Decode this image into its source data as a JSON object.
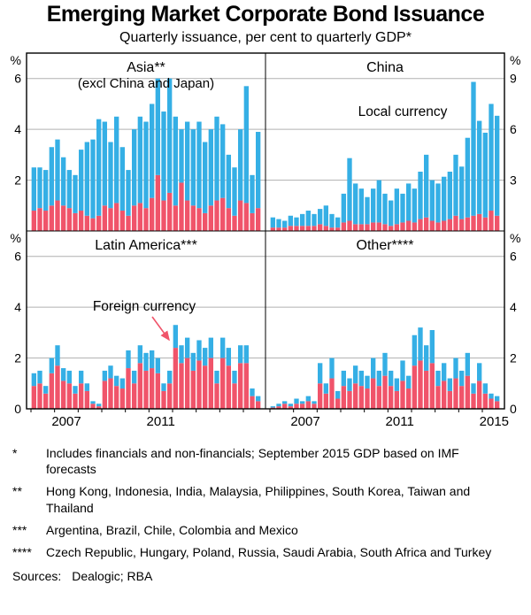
{
  "title": "Emerging Market Corporate Bond Issuance",
  "subtitle": "Quarterly issuance, per cent to quarterly GDP*",
  "colors": {
    "local": "#35AFE5",
    "foreign": "#F0546A",
    "grid": "#B0B0B0",
    "axis": "#000000"
  },
  "legend": {
    "local_label": "Local currency",
    "foreign_label": "Foreign currency"
  },
  "footnotes": [
    {
      "marker": "*",
      "text": "Includes financials and non-financials; September 2015 GDP based on IMF forecasts"
    },
    {
      "marker": "**",
      "text": "Hong Kong, Indonesia, India, Malaysia, Philippines, South Korea, Taiwan and Thailand"
    },
    {
      "marker": "***",
      "text": "Argentina, Brazil, Chile, Colombia and Mexico"
    },
    {
      "marker": "****",
      "text": "Czech Republic, Hungary, Poland, Russia, Saudi Arabia, South Africa and Turkey"
    }
  ],
  "sources": {
    "label": "Sources:",
    "text": "Dealogic; RBA"
  },
  "chart_data": {
    "type": "bar",
    "stacked": true,
    "y_axis": {
      "unit": "%"
    },
    "quarters": [
      "2006Q1",
      "2006Q2",
      "2006Q3",
      "2006Q4",
      "2007Q1",
      "2007Q2",
      "2007Q3",
      "2007Q4",
      "2008Q1",
      "2008Q2",
      "2008Q3",
      "2008Q4",
      "2009Q1",
      "2009Q2",
      "2009Q3",
      "2009Q4",
      "2010Q1",
      "2010Q2",
      "2010Q3",
      "2010Q4",
      "2011Q1",
      "2011Q2",
      "2011Q3",
      "2011Q4",
      "2012Q1",
      "2012Q2",
      "2012Q3",
      "2012Q4",
      "2013Q1",
      "2013Q2",
      "2013Q3",
      "2013Q4",
      "2014Q1",
      "2014Q2",
      "2014Q3",
      "2014Q4",
      "2015Q1",
      "2015Q2",
      "2015Q3"
    ],
    "panels": [
      {
        "id": "asia",
        "title": "Asia**",
        "subtitle": "(excl China and Japan)",
        "axis_side": "left",
        "ymax": 7,
        "yticks": [
          2,
          4,
          6
        ],
        "ytick_labels": [
          "2",
          "4",
          "6"
        ],
        "show_zero": false,
        "series": [
          {
            "name": "Foreign currency",
            "color_key": "foreign",
            "values": [
              0.8,
              0.9,
              0.8,
              1.0,
              1.2,
              1.0,
              0.9,
              0.7,
              0.8,
              0.6,
              0.5,
              0.6,
              1.0,
              0.9,
              1.1,
              0.8,
              0.6,
              1.0,
              1.1,
              0.9,
              1.3,
              2.2,
              1.2,
              1.5,
              1.0,
              1.9,
              1.2,
              1.0,
              0.9,
              0.7,
              1.0,
              1.2,
              1.3,
              0.9,
              0.6,
              1.2,
              1.1,
              0.7,
              0.9
            ]
          },
          {
            "name": "Local currency",
            "color_key": "local",
            "values": [
              1.7,
              1.6,
              1.6,
              2.3,
              2.4,
              1.9,
              1.5,
              1.5,
              2.4,
              2.9,
              3.1,
              3.8,
              3.3,
              2.6,
              3.4,
              2.5,
              1.8,
              3.0,
              3.4,
              3.4,
              3.7,
              3.8,
              3.5,
              4.5,
              3.5,
              2.1,
              3.1,
              3.0,
              3.4,
              2.8,
              3.0,
              3.3,
              2.9,
              2.1,
              1.9,
              2.8,
              4.6,
              1.5,
              3.0
            ]
          }
        ]
      },
      {
        "id": "china",
        "title": "China",
        "axis_side": "right",
        "ymax": 10.5,
        "yticks": [
          3,
          6,
          9
        ],
        "ytick_labels": [
          "3",
          "6",
          "9"
        ],
        "show_zero": false,
        "series": [
          {
            "name": "Foreign currency",
            "color_key": "foreign",
            "values": [
              0.2,
              0.2,
              0.2,
              0.3,
              0.3,
              0.3,
              0.3,
              0.3,
              0.4,
              0.3,
              0.2,
              0.2,
              0.5,
              0.6,
              0.4,
              0.4,
              0.4,
              0.5,
              0.5,
              0.4,
              0.3,
              0.4,
              0.5,
              0.6,
              0.5,
              0.7,
              0.8,
              0.6,
              0.5,
              0.6,
              0.7,
              0.9,
              0.7,
              0.8,
              0.9,
              1.0,
              0.8,
              1.2,
              0.9
            ]
          },
          {
            "name": "Local currency",
            "color_key": "local",
            "values": [
              0.6,
              0.5,
              0.4,
              0.6,
              0.5,
              0.7,
              0.9,
              0.7,
              0.9,
              1.2,
              0.8,
              0.6,
              1.7,
              3.7,
              2.4,
              2.1,
              1.6,
              2.0,
              2.5,
              1.8,
              1.5,
              2.1,
              1.7,
              2.2,
              2.0,
              2.8,
              3.7,
              2.4,
              2.3,
              2.6,
              2.8,
              3.6,
              3.1,
              4.7,
              7.9,
              5.5,
              5.0,
              6.3,
              5.9
            ]
          }
        ]
      },
      {
        "id": "latin-america",
        "title": "Latin America***",
        "axis_side": "left",
        "ymax": 7,
        "yticks": [
          2,
          4,
          6
        ],
        "ytick_labels": [
          "2",
          "4",
          "6"
        ],
        "show_zero": true,
        "year_labels": [
          "2007",
          "2011"
        ],
        "series": [
          {
            "name": "Foreign currency",
            "color_key": "foreign",
            "values": [
              0.9,
              1.0,
              0.6,
              1.4,
              1.7,
              1.1,
              1.0,
              0.6,
              1.0,
              0.7,
              0.2,
              0.1,
              1.1,
              1.2,
              0.9,
              0.8,
              1.6,
              1.0,
              1.8,
              1.5,
              1.6,
              1.4,
              0.7,
              1.0,
              2.4,
              1.8,
              2.0,
              1.5,
              1.9,
              1.7,
              2.0,
              1.0,
              2.0,
              1.7,
              1.0,
              1.8,
              1.8,
              0.5,
              0.3
            ]
          },
          {
            "name": "Local currency",
            "color_key": "local",
            "values": [
              0.5,
              0.5,
              0.3,
              0.6,
              0.8,
              0.5,
              0.5,
              0.3,
              0.5,
              0.3,
              0.1,
              0.1,
              0.4,
              0.5,
              0.4,
              0.4,
              0.7,
              0.5,
              0.7,
              0.7,
              0.7,
              0.6,
              0.3,
              0.5,
              0.9,
              0.7,
              0.8,
              0.7,
              0.8,
              0.7,
              0.8,
              0.5,
              0.8,
              0.7,
              0.5,
              0.7,
              0.7,
              0.3,
              0.2
            ]
          }
        ]
      },
      {
        "id": "other",
        "title": "Other****",
        "axis_side": "right",
        "ymax": 7,
        "yticks": [
          2,
          4,
          6
        ],
        "ytick_labels": [
          "2",
          "4",
          "6"
        ],
        "show_zero": true,
        "year_labels": [
          "2007",
          "2011",
          "2015"
        ],
        "series": [
          {
            "name": "Foreign currency",
            "color_key": "foreign",
            "values": [
              0.05,
              0.1,
              0.2,
              0.1,
              0.2,
              0.2,
              0.3,
              0.2,
              1.0,
              0.6,
              1.2,
              0.4,
              0.9,
              0.7,
              1.0,
              0.9,
              0.8,
              1.2,
              0.9,
              1.3,
              0.9,
              0.7,
              1.1,
              0.8,
              1.7,
              1.9,
              1.5,
              1.8,
              0.9,
              1.1,
              0.7,
              1.2,
              0.9,
              1.3,
              0.6,
              1.1,
              0.6,
              0.4,
              0.3
            ]
          },
          {
            "name": "Local currency",
            "color_key": "local",
            "values": [
              0.05,
              0.1,
              0.1,
              0.1,
              0.2,
              0.1,
              0.2,
              0.1,
              0.8,
              0.4,
              0.8,
              0.3,
              0.6,
              0.5,
              0.7,
              0.6,
              0.5,
              0.8,
              0.6,
              0.9,
              0.6,
              0.5,
              0.8,
              0.5,
              1.2,
              1.3,
              1.0,
              1.3,
              0.6,
              0.7,
              0.5,
              0.8,
              0.6,
              0.9,
              0.4,
              0.7,
              0.4,
              0.2,
              0.2
            ]
          }
        ]
      }
    ]
  }
}
